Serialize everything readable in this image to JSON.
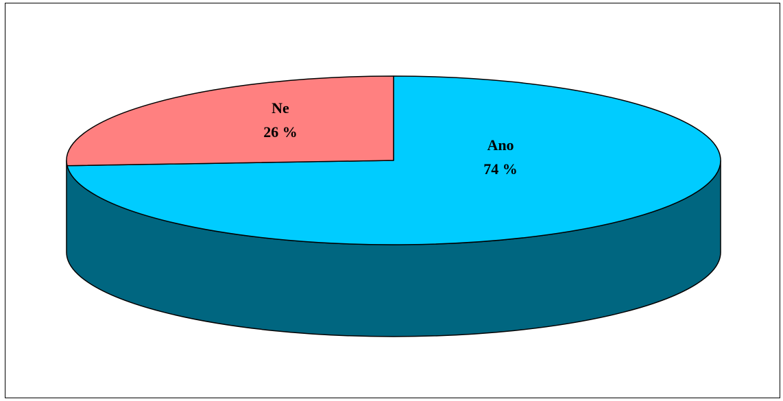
{
  "chart_data": {
    "type": "pie",
    "title": "",
    "categories": [
      "Ano",
      "Ne"
    ],
    "values": [
      74,
      26
    ],
    "value_labels": [
      "74 %",
      "26 %"
    ],
    "colors": {
      "Ano": "#00CCFF",
      "Ne": "#FF8080"
    },
    "side_color": "#006680",
    "style": "3d",
    "legend": "none"
  }
}
